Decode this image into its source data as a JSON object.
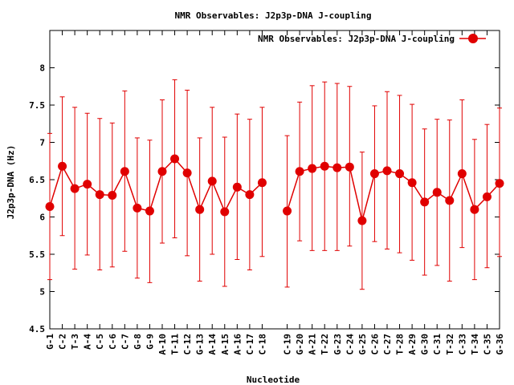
{
  "chart_data": {
    "type": "line",
    "title": "NMR Observables: J2p3p-DNA J-coupling",
    "xlabel": "Nucleotide",
    "ylabel": "J2p3p-DNA (Hz)",
    "ylim": [
      4.5,
      8.5
    ],
    "yticks": [
      "4.5",
      "5",
      "5.5",
      "6",
      "6.5",
      "7",
      "7.5",
      "8"
    ],
    "legend": {
      "label": "NMR Observables: J2p3p-DNA J-coupling",
      "position": "top-right"
    },
    "grid": false,
    "colors": {
      "series": "#e00000",
      "axis": "#000000",
      "background": "#ffffff"
    },
    "categories": [
      "G-1",
      "C-2",
      "T-3",
      "A-4",
      "C-5",
      "C-6",
      "C-7",
      "G-8",
      "G-9",
      "A-10",
      "T-11",
      "C-12",
      "G-13",
      "A-14",
      "A-15",
      "A-16",
      "C-17",
      "C-18",
      "",
      "C-19",
      "G-20",
      "A-21",
      "T-22",
      "G-23",
      "C-24",
      "G-25",
      "C-26",
      "C-27",
      "T-28",
      "A-29",
      "G-30",
      "C-31",
      "T-32",
      "C-33",
      "T-34",
      "C-35",
      "G-36"
    ],
    "series": [
      {
        "name": "NMR Observables: J2p3p-DNA J-coupling",
        "values": [
          6.14,
          6.68,
          6.38,
          6.44,
          6.3,
          6.29,
          6.61,
          6.12,
          6.08,
          6.61,
          6.78,
          6.59,
          6.1,
          6.48,
          6.07,
          6.4,
          6.3,
          6.46,
          null,
          6.08,
          6.61,
          6.65,
          6.68,
          6.66,
          6.67,
          5.95,
          6.58,
          6.62,
          6.58,
          6.46,
          6.2,
          6.33,
          6.22,
          6.58,
          6.1,
          6.27,
          6.45
        ],
        "err_upper": [
          7.12,
          7.61,
          7.47,
          7.39,
          7.32,
          7.26,
          7.69,
          7.06,
          7.03,
          7.57,
          7.84,
          7.7,
          7.06,
          7.47,
          7.07,
          7.38,
          7.31,
          7.47,
          null,
          7.09,
          7.54,
          7.76,
          7.81,
          7.79,
          7.75,
          6.87,
          7.49,
          7.68,
          7.63,
          7.51,
          7.18,
          7.31,
          7.3,
          7.57,
          7.04,
          7.24,
          7.46
        ],
        "err_lower": [
          5.16,
          5.75,
          5.3,
          5.49,
          5.29,
          5.33,
          5.54,
          5.18,
          5.12,
          5.65,
          5.72,
          5.48,
          5.14,
          5.5,
          5.07,
          5.43,
          5.29,
          5.47,
          null,
          5.06,
          5.68,
          5.55,
          5.55,
          5.55,
          5.61,
          5.03,
          5.67,
          5.57,
          5.52,
          5.42,
          5.22,
          5.35,
          5.14,
          5.59,
          5.16,
          5.32,
          5.47
        ]
      }
    ]
  }
}
